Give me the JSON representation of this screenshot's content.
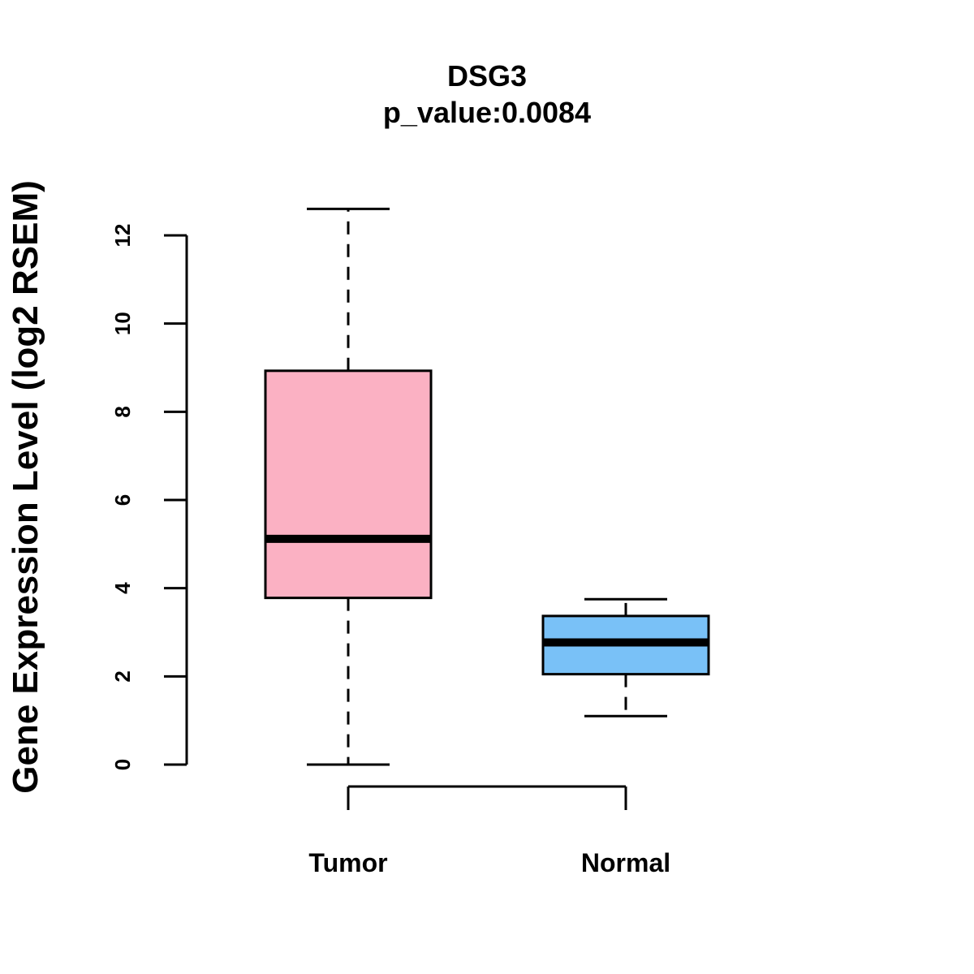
{
  "chart_data": {
    "type": "boxplot",
    "title": "DSG3",
    "subtitle": "p_value:0.0084",
    "xlabel": "",
    "ylabel": "Gene Expression Level (log2 RSEM)",
    "ylim": [
      0,
      12
    ],
    "yticks": [
      0,
      2,
      4,
      6,
      8,
      10,
      12
    ],
    "grid": false,
    "categories": [
      "Tumor",
      "Normal"
    ],
    "series": [
      {
        "name": "Tumor",
        "color": "#fbb1c3",
        "whisker_low": 0.0,
        "q1": 3.78,
        "median": 5.12,
        "q3": 8.93,
        "whisker_high": 12.6
      },
      {
        "name": "Normal",
        "color": "#79c1f7",
        "whisker_low": 1.1,
        "q1": 2.05,
        "median": 2.77,
        "q3": 3.37,
        "whisker_high": 3.75
      }
    ],
    "bracket": {
      "from": "Tumor",
      "to": "Normal"
    }
  }
}
